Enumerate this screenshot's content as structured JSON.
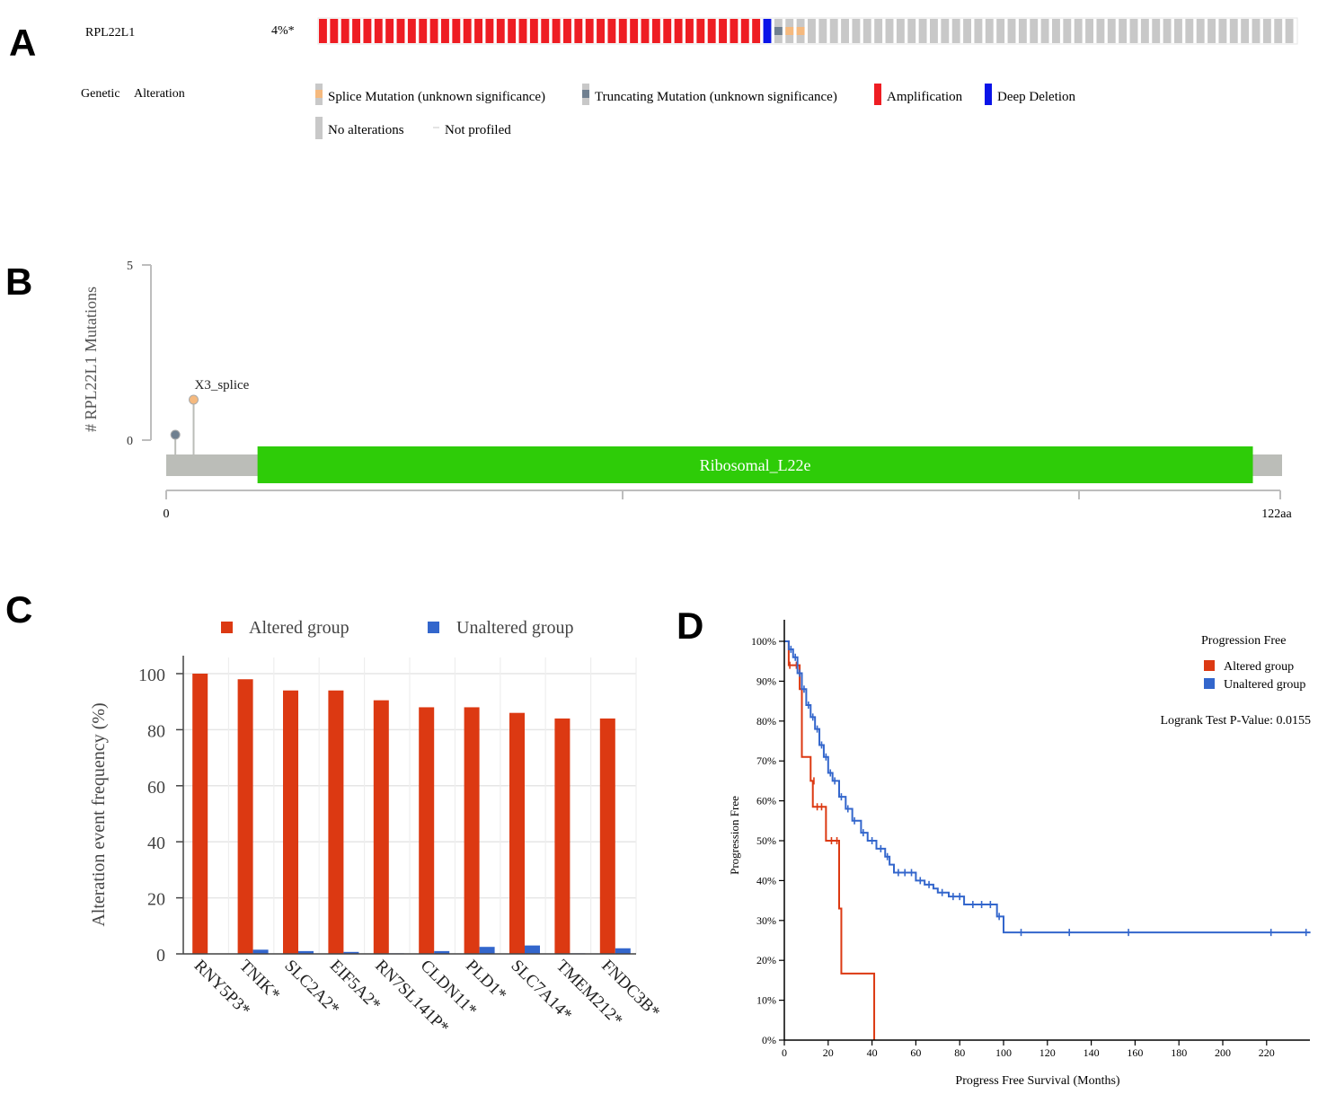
{
  "panels": {
    "a_label": "A",
    "b_label": "B",
    "c_label": "C",
    "d_label": "D"
  },
  "colors": {
    "amplification": "#ee1d23",
    "deep_deletion": "#0a14e8",
    "splice": "#f5b97e",
    "truncating": "#708090",
    "no_alteration": "#c8c8c8",
    "domain": "#2ecc08",
    "altered_bar": "#dc3912",
    "unaltered_bar": "#3366cc",
    "km_altered": "#dc3912",
    "km_unaltered": "#3366cc"
  },
  "oncoprint": {
    "gene": "RPL22L1",
    "percent": "4%*",
    "legend_title_1": "Genetic",
    "legend_title_2": "Alteration",
    "legend": [
      {
        "label": "Splice Mutation (unknown significance)",
        "kind": "splice"
      },
      {
        "label": "Truncating Mutation (unknown significance)",
        "kind": "truncating"
      },
      {
        "label": "Amplification",
        "kind": "amplification"
      },
      {
        "label": "Deep Deletion",
        "kind": "deep_deletion"
      },
      {
        "label": "No alterations",
        "kind": "no_alteration"
      },
      {
        "label": "Not profiled",
        "kind": "not_profiled"
      }
    ],
    "samples": {
      "amplification": 40,
      "deep_deletion": 1,
      "truncating": 1,
      "splice": 2,
      "unaltered_shown": 44
    }
  },
  "lollipop": {
    "y_axis_label": "# RPL22L1 Mutations",
    "y_ticks": [
      "5",
      "0"
    ],
    "y_max": 5,
    "protein_length": 122,
    "x_start_label": "0",
    "x_end_label": "122aa",
    "domain": {
      "name": "Ribosomal_L22e",
      "start": 10,
      "end": 119
    },
    "mutations": [
      {
        "position": 1,
        "count": 1,
        "kind": "truncating",
        "label": ""
      },
      {
        "position": 3,
        "count": 2,
        "kind": "splice",
        "label": "X3_splice"
      }
    ]
  },
  "chart_data": [
    {
      "type": "bar",
      "title": "",
      "xlabel": "",
      "ylabel": "Alteration event frequency (%)",
      "ylim": [
        0,
        100
      ],
      "y_ticks": [
        "0",
        "20",
        "40",
        "60",
        "80",
        "100"
      ],
      "legend_position": "top",
      "categories": [
        "RNY5P3*",
        "TNIK*",
        "SLC2A2*",
        "EIF5A2*",
        "RN7SL141P*",
        "CLDN11*",
        "PLD1*",
        "SLC7A14*",
        "TMEM212*",
        "FNDC3B*"
      ],
      "series": [
        {
          "name": "Altered group",
          "values": [
            100,
            98,
            94,
            94,
            90.5,
            88,
            88,
            86,
            84,
            84
          ]
        },
        {
          "name": "Unaltered group",
          "values": [
            0,
            1.5,
            1,
            0.7,
            0.2,
            1,
            2.5,
            3,
            0.2,
            2
          ]
        }
      ]
    },
    {
      "type": "line",
      "title": "Progression Free",
      "xlabel": "Progress Free Survival (Months)",
      "ylabel": "Progression Free",
      "annotation": "Logrank Test P-Value: 0.0155",
      "legend_position": "top-right",
      "xlim": [
        0,
        240
      ],
      "ylim": [
        0,
        100
      ],
      "x_ticks": [
        "0",
        "20",
        "40",
        "60",
        "80",
        "100",
        "120",
        "140",
        "160",
        "180",
        "200",
        "220"
      ],
      "y_ticks": [
        "0%",
        "10%",
        "20%",
        "30%",
        "40%",
        "50%",
        "60%",
        "70%",
        "80%",
        "90%",
        "100%"
      ],
      "series": [
        {
          "name": "Altered group",
          "steps": [
            [
              0,
              100
            ],
            [
              2,
              94
            ],
            [
              7,
              88
            ],
            [
              8,
              71
            ],
            [
              12,
              65
            ],
            [
              13,
              58.5
            ],
            [
              19,
              50
            ],
            [
              25,
              33
            ],
            [
              26,
              16.7
            ],
            [
              41,
              0
            ]
          ],
          "censored": [
            [
              2.5,
              94
            ],
            [
              5.5,
              94
            ],
            [
              13.5,
              65
            ],
            [
              15,
              58.5
            ],
            [
              17,
              58.5
            ],
            [
              21.5,
              50
            ],
            [
              24,
              50
            ]
          ]
        },
        {
          "name": "Unaltered group",
          "steps": [
            [
              0,
              100
            ],
            [
              2,
              98
            ],
            [
              4,
              96
            ],
            [
              6,
              92
            ],
            [
              8,
              88
            ],
            [
              10,
              84
            ],
            [
              12,
              81
            ],
            [
              14,
              78
            ],
            [
              16,
              74
            ],
            [
              18,
              71
            ],
            [
              20,
              67
            ],
            [
              22,
              65
            ],
            [
              25,
              61
            ],
            [
              28,
              58
            ],
            [
              31,
              55
            ],
            [
              35,
              52
            ],
            [
              38,
              50
            ],
            [
              42,
              48
            ],
            [
              46,
              46
            ],
            [
              48,
              44
            ],
            [
              50,
              42
            ],
            [
              60,
              40
            ],
            [
              64,
              39
            ],
            [
              68,
              38
            ],
            [
              70,
              37
            ],
            [
              75,
              36
            ],
            [
              82,
              34
            ],
            [
              97,
              31
            ],
            [
              100,
              27
            ]
          ],
          "censored": [
            [
              3,
              98
            ],
            [
              5,
              96
            ],
            [
              7,
              92
            ],
            [
              9,
              88
            ],
            [
              11,
              84
            ],
            [
              13,
              81
            ],
            [
              15,
              78
            ],
            [
              17,
              74
            ],
            [
              19,
              71
            ],
            [
              21,
              67
            ],
            [
              23,
              65
            ],
            [
              26,
              61
            ],
            [
              29,
              58
            ],
            [
              32,
              55
            ],
            [
              36,
              52
            ],
            [
              40,
              50
            ],
            [
              44,
              48
            ],
            [
              47,
              46
            ],
            [
              52,
              42
            ],
            [
              55,
              42
            ],
            [
              58,
              42
            ],
            [
              62,
              40
            ],
            [
              66,
              39
            ],
            [
              72,
              37
            ],
            [
              77,
              36
            ],
            [
              80,
              36
            ],
            [
              86,
              34
            ],
            [
              90,
              34
            ],
            [
              94,
              34
            ],
            [
              98,
              31
            ],
            [
              108,
              27
            ],
            [
              130,
              27
            ],
            [
              157,
              27
            ],
            [
              222,
              27
            ],
            [
              238,
              27
            ]
          ]
        }
      ]
    }
  ]
}
